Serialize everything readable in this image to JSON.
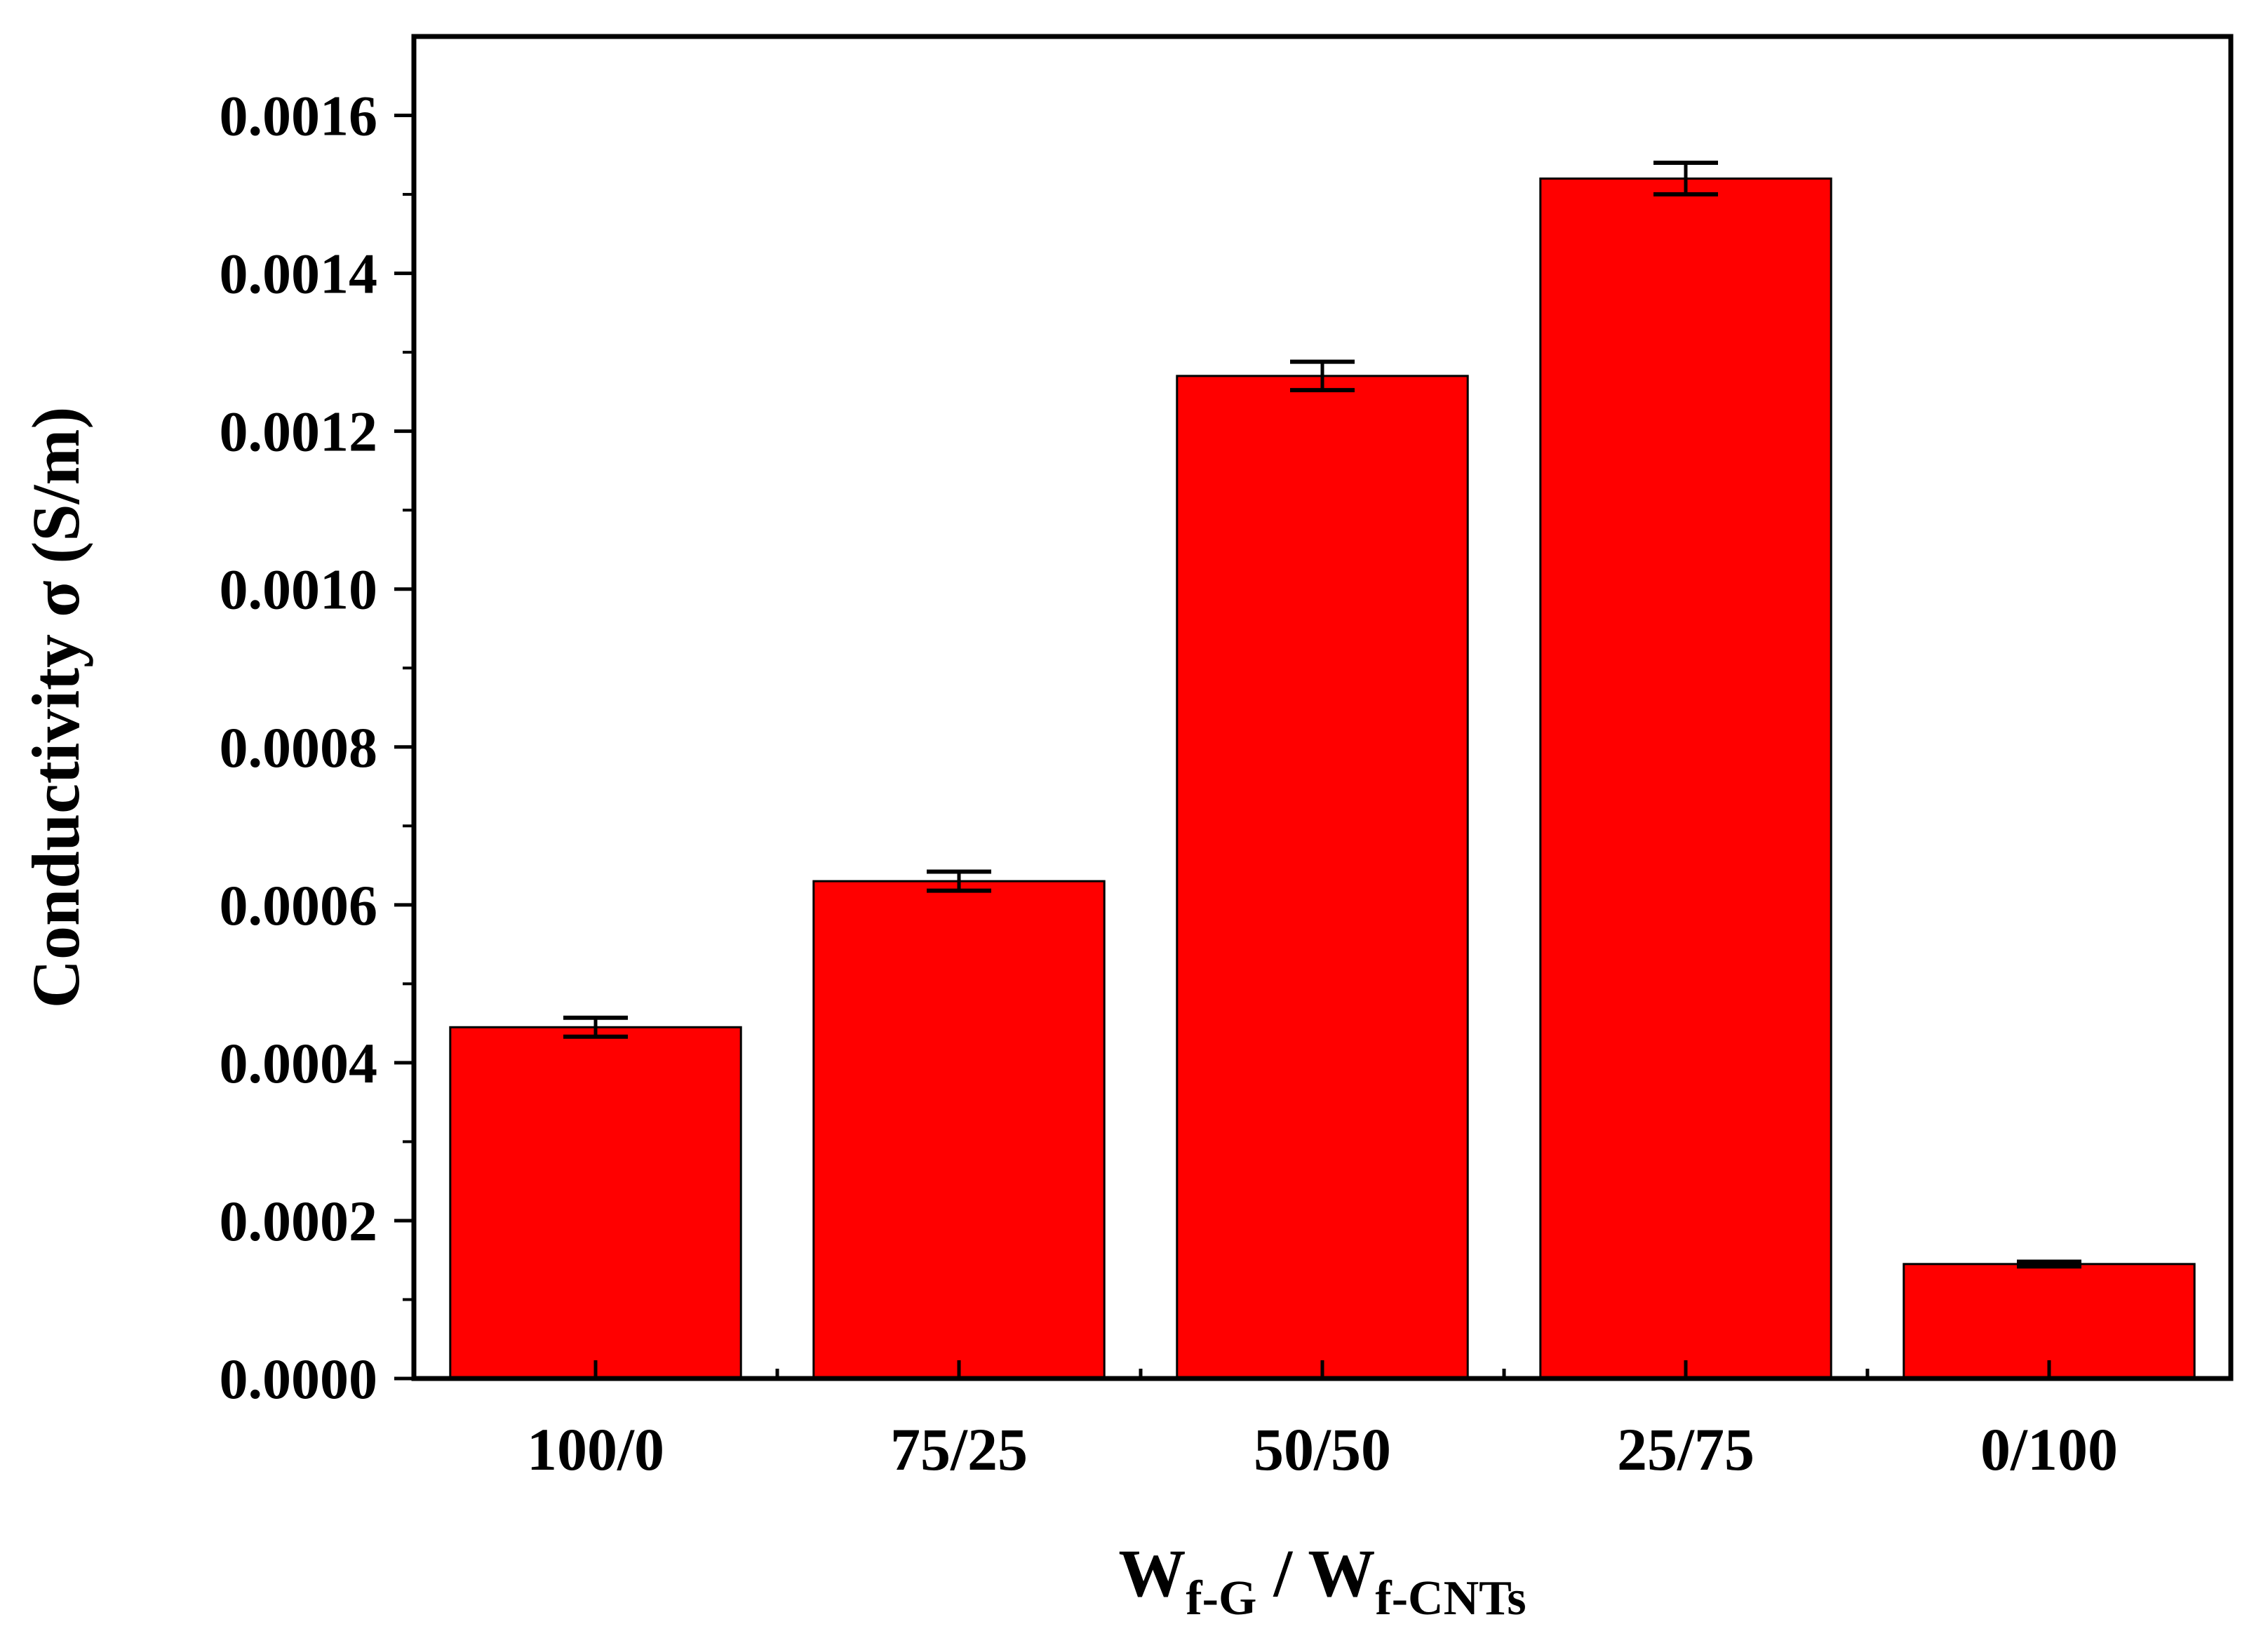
{
  "chart_data": {
    "type": "bar",
    "categories": [
      "100/0",
      "75/25",
      "50/50",
      "25/75",
      "0/100"
    ],
    "values": [
      0.000445,
      0.00063,
      0.00127,
      0.00152,
      0.000145
    ],
    "errors": [
      1.2e-05,
      1.2e-05,
      1.8e-05,
      2e-05,
      3e-06
    ],
    "ylim": [
      0,
      0.0017
    ],
    "yticks": [
      "0.0000",
      "0.0002",
      "0.0004",
      "0.0006",
      "0.0008",
      "0.0010",
      "0.0012",
      "0.0014",
      "0.0016"
    ],
    "ylabel": "Conductivity σ (S/m)",
    "xlabel": {
      "part1_main": "W",
      "part1_sub": "f-G",
      "separator": " / ",
      "part2_main": "W",
      "part2_sub": "f-CNTs"
    },
    "bar_color": "#ff0000",
    "edge_color": "#000000"
  }
}
